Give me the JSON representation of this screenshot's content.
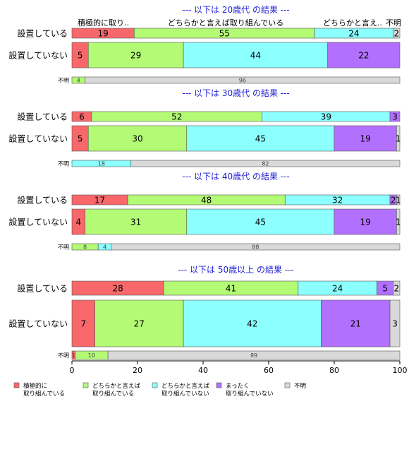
{
  "chart_data": {
    "type": "bar",
    "orientation": "horizontal",
    "stacked": true,
    "xlim": [
      0,
      100
    ],
    "x_ticks": [
      "0",
      "20",
      "40",
      "60",
      "80",
      "100"
    ],
    "colors": [
      "#f8686b",
      "#b3fa75",
      "#8cffff",
      "#b270ff",
      "#d9d9d9"
    ],
    "legend": {
      "position": "bottom",
      "items": [
        {
          "line1": "積極的に",
          "line2": "取り組んでいる"
        },
        {
          "line1": "どちらかと言えば",
          "line2": "取り組んでいる"
        },
        {
          "line1": "どちらかと言えば",
          "line2": "取り組んでいない"
        },
        {
          "line1": "まったく",
          "line2": "取り組んでいない"
        },
        {
          "line1": "不明",
          "line2": ""
        }
      ]
    },
    "header_labels": [
      "積極的に取り..",
      "どちらかと言えば取り組んでいる",
      "どちらかと言え..",
      "不明"
    ],
    "panels": [
      {
        "title": "--- 以下は 20歳代 の結果 ---",
        "rows": [
          {
            "label": "設置している",
            "values": [
              19,
              55,
              24,
              0,
              2
            ],
            "value_labels": [
              "19",
              "55",
              "24",
              "",
              "2"
            ]
          },
          {
            "label": "設置していない",
            "values": [
              5,
              29,
              44,
              22,
              0
            ],
            "value_labels": [
              "5",
              "29",
              "44",
              "22",
              ""
            ]
          },
          {
            "label": "不明",
            "values": [
              0,
              4,
              0,
              0,
              96
            ],
            "value_labels": [
              "",
              "4",
              "",
              "",
              "96"
            ]
          }
        ]
      },
      {
        "title": "--- 以下は 30歳代 の結果 ---",
        "rows": [
          {
            "label": "設置している",
            "values": [
              6,
              52,
              39,
              3,
              0
            ],
            "value_labels": [
              "6",
              "52",
              "39",
              "3",
              ""
            ]
          },
          {
            "label": "設置していない",
            "values": [
              5,
              30,
              45,
              19,
              1
            ],
            "value_labels": [
              "5",
              "30",
              "45",
              "19",
              "1"
            ]
          },
          {
            "label": "不明",
            "values": [
              0,
              0,
              18,
              0,
              82
            ],
            "value_labels": [
              "",
              "",
              "18",
              "",
              "82"
            ]
          }
        ]
      },
      {
        "title": "--- 以下は 40歳代 の結果 ---",
        "rows": [
          {
            "label": "設置している",
            "values": [
              17,
              48,
              32,
              2,
              1
            ],
            "value_labels": [
              "17",
              "48",
              "32",
              "2",
              "1"
            ]
          },
          {
            "label": "設置していない",
            "values": [
              4,
              31,
              45,
              19,
              1
            ],
            "value_labels": [
              "4",
              "31",
              "45",
              "19",
              "1"
            ]
          },
          {
            "label": "不明",
            "values": [
              0,
              8,
              4,
              0,
              88
            ],
            "value_labels": [
              "",
              "8",
              "4",
              "",
              "88"
            ]
          }
        ]
      },
      {
        "title": "--- 以下は 50歳以上 の結果 ---",
        "rows": [
          {
            "label": "設置している",
            "values": [
              28,
              41,
              24,
              5,
              2
            ],
            "value_labels": [
              "28",
              "41",
              "24",
              "5",
              "2"
            ]
          },
          {
            "label": "設置していない",
            "values": [
              7,
              27,
              42,
              21,
              3
            ],
            "value_labels": [
              "7",
              "27",
              "42",
              "21",
              "3"
            ]
          },
          {
            "label": "不明",
            "values": [
              1,
              10,
              0,
              0,
              89
            ],
            "value_labels": [
              "1",
              "10",
              "",
              "",
              "89"
            ]
          }
        ]
      }
    ]
  }
}
